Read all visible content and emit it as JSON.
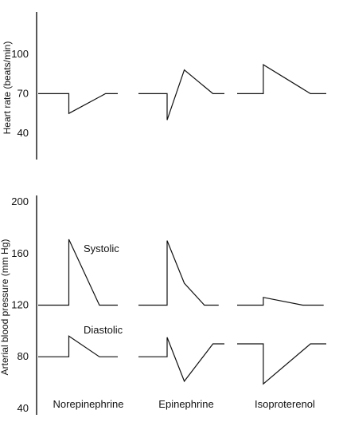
{
  "chart_data": [
    {
      "type": "line",
      "ylabel": "Heart rate (beats/min)",
      "yticks": [
        40,
        70,
        100
      ],
      "ylim": [
        20,
        132
      ],
      "categories": [
        "Norepinephrine",
        "Epinephrine",
        "Isoproterenol"
      ],
      "series": [
        {
          "panels": [
            {
              "x": [
                0,
                1.0,
                1.0,
                2.2,
                2.6
              ],
              "y": [
                70,
                70,
                55,
                70,
                70
              ]
            },
            {
              "x": [
                0,
                1.0,
                1.0,
                1.6,
                2.6,
                3.0
              ],
              "y": [
                70,
                70,
                50,
                88,
                70,
                70
              ]
            },
            {
              "x": [
                0,
                1.0,
                1.0,
                2.8,
                3.4
              ],
              "y": [
                70,
                70,
                92,
                70,
                70
              ]
            }
          ]
        }
      ]
    },
    {
      "type": "line",
      "ylabel": "Arterial blood pressure (mm Hg)",
      "yticks": [
        40,
        80,
        120,
        160,
        200
      ],
      "ylim": [
        35,
        205
      ],
      "categories": [
        "Norepinephrine",
        "Epinephrine",
        "Isoproterenol"
      ],
      "annotations": [
        "Systolic",
        "Diastolic"
      ],
      "series": [
        {
          "name": "Systolic",
          "panels": [
            {
              "x": [
                0,
                1.0,
                1.0,
                2.0,
                2.6
              ],
              "y": [
                120,
                120,
                171,
                120,
                120
              ]
            },
            {
              "x": [
                0,
                1.0,
                1.0,
                1.6,
                2.3,
                2.8
              ],
              "y": [
                120,
                120,
                170,
                137,
                120,
                120
              ]
            },
            {
              "x": [
                0,
                1.0,
                1.0,
                2.5,
                3.3
              ],
              "y": [
                120,
                120,
                126,
                120,
                120
              ]
            }
          ]
        },
        {
          "name": "Diastolic",
          "panels": [
            {
              "x": [
                0,
                1.0,
                1.0,
                2.0,
                2.6
              ],
              "y": [
                80,
                80,
                96,
                80,
                80
              ]
            },
            {
              "x": [
                0,
                1.0,
                1.0,
                1.6,
                2.6,
                3.0
              ],
              "y": [
                80,
                80,
                95,
                61,
                90,
                90
              ]
            },
            {
              "x": [
                0,
                1.0,
                1.0,
                2.8,
                3.4
              ],
              "y": [
                90,
                90,
                59,
                90,
                90
              ]
            }
          ]
        }
      ]
    }
  ]
}
